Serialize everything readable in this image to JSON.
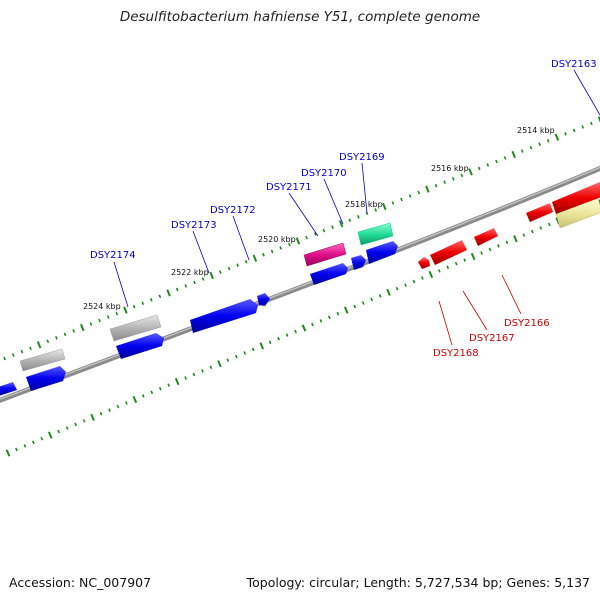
{
  "title": "Desulfitobacterium hafniense Y51, complete genome",
  "footer": {
    "accession": "Accession: NC_007907",
    "stats": "Topology: circular; Length: 5,727,534 bp; Genes: 5,137"
  },
  "colors": {
    "background": "#ffffff",
    "backbone": "#777777",
    "tick": "#1f8a1f",
    "gene_blue": "#0000ee",
    "gene_red": "#ee0000",
    "gene_gray": "#b0b0b0",
    "gene_magenta": "#e0118a",
    "gene_green": "#22dd99",
    "gene_yellow": "#eee8a0",
    "label_blue": "#0000cc",
    "label_red": "#cc0000"
  },
  "kbp_labels": [
    "2524 kbp",
    "2522 kbp",
    "2520 kbp",
    "2518 kbp",
    "2516 kbp",
    "2514 kbp"
  ],
  "gene_labels": {
    "blue": [
      "DSY2174",
      "DSY2173",
      "DSY2172",
      "DSY2171",
      "DSY2170",
      "DSY2169",
      "DSY2163"
    ],
    "red": [
      "DSY2168",
      "DSY2167",
      "DSY2166"
    ]
  }
}
